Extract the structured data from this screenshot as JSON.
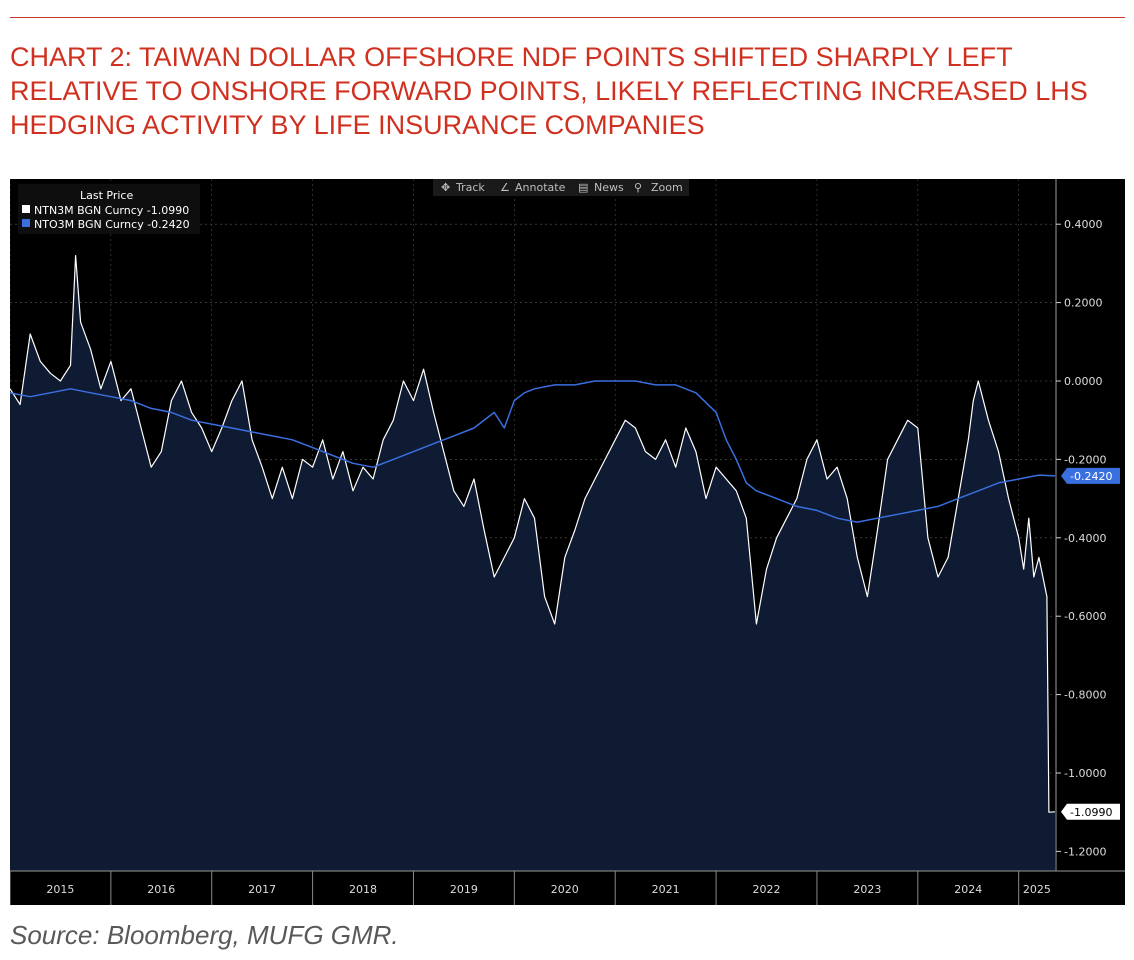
{
  "header": {
    "title": "CHART 2: TAIWAN DOLLAR OFFSHORE NDF POINTS SHIFTED SHARPLY LEFT RELATIVE TO ONSHORE FORWARD POINTS, LIKELY REFLECTING INCREASED LHS HEDGING ACTIVITY BY LIFE INSURANCE COMPANIES"
  },
  "footer": {
    "source": "Source: Bloomberg, MUFG GMR."
  },
  "toolbar": {
    "items": [
      {
        "label": "Track",
        "icon": "crosshair-icon"
      },
      {
        "label": "Annotate",
        "icon": "pencil-icon"
      },
      {
        "label": "News",
        "icon": "news-icon"
      },
      {
        "label": "Zoom",
        "icon": "magnifier-icon"
      }
    ]
  },
  "colors": {
    "series_white": "#ffffff",
    "series_blue": "#3a6fe0",
    "area_fill": "#0f1b33",
    "background": "#000000",
    "title": "#d0301f"
  },
  "chart_data": {
    "type": "line",
    "legend": {
      "header": "Last Price",
      "placement": "top-left",
      "entries": [
        {
          "label": "NTN3M BGN Curncy  -1.0990",
          "color": "#ffffff"
        },
        {
          "label": "NTO3M BGN Curncy  -0.2420",
          "color": "#3a6fe0"
        }
      ]
    },
    "x_start": 2015.0,
    "x_end": 2025.36,
    "ylim": [
      -1.25,
      0.5
    ],
    "y_ticks": [
      0.4,
      0.2,
      0.0,
      -0.2,
      -0.4,
      -0.6,
      -0.8,
      -1.0,
      -1.2
    ],
    "y_tick_labels": [
      "0.4000",
      "0.2000",
      "0.0000",
      "-0.2000",
      "-0.4000",
      "-0.6000",
      "-0.8000",
      "-1.0000",
      "-1.2000"
    ],
    "x_tick_labels": [
      "2015",
      "2016",
      "2017",
      "2018",
      "2019",
      "2020",
      "2021",
      "2022",
      "2023",
      "2024",
      "2025"
    ],
    "x_tick_values": [
      2015,
      2016,
      2017,
      2018,
      2019,
      2020,
      2021,
      2022,
      2023,
      2024,
      2025
    ],
    "last_value_labels": [
      {
        "series": "NTO3M BGN Curncy",
        "text": "-0.2420",
        "value": -0.242,
        "color": "#3a6fe0"
      },
      {
        "series": "NTN3M BGN Curncy",
        "text": "-1.0990",
        "value": -1.099,
        "color": "#ffffff"
      }
    ],
    "series": [
      {
        "name": "NTN3M BGN Curncy",
        "color": "#ffffff",
        "area": true,
        "points": [
          [
            2015.0,
            -0.02
          ],
          [
            2015.1,
            -0.06
          ],
          [
            2015.2,
            0.12
          ],
          [
            2015.3,
            0.05
          ],
          [
            2015.4,
            0.02
          ],
          [
            2015.5,
            0.0
          ],
          [
            2015.6,
            0.04
          ],
          [
            2015.65,
            0.32
          ],
          [
            2015.7,
            0.15
          ],
          [
            2015.8,
            0.08
          ],
          [
            2015.9,
            -0.02
          ],
          [
            2016.0,
            0.05
          ],
          [
            2016.1,
            -0.05
          ],
          [
            2016.2,
            -0.02
          ],
          [
            2016.3,
            -0.12
          ],
          [
            2016.4,
            -0.22
          ],
          [
            2016.5,
            -0.18
          ],
          [
            2016.6,
            -0.05
          ],
          [
            2016.7,
            0.0
          ],
          [
            2016.8,
            -0.08
          ],
          [
            2016.9,
            -0.12
          ],
          [
            2017.0,
            -0.18
          ],
          [
            2017.1,
            -0.12
          ],
          [
            2017.2,
            -0.05
          ],
          [
            2017.3,
            0.0
          ],
          [
            2017.4,
            -0.15
          ],
          [
            2017.5,
            -0.22
          ],
          [
            2017.6,
            -0.3
          ],
          [
            2017.7,
            -0.22
          ],
          [
            2017.8,
            -0.3
          ],
          [
            2017.9,
            -0.2
          ],
          [
            2018.0,
            -0.22
          ],
          [
            2018.1,
            -0.15
          ],
          [
            2018.2,
            -0.25
          ],
          [
            2018.3,
            -0.18
          ],
          [
            2018.4,
            -0.28
          ],
          [
            2018.5,
            -0.22
          ],
          [
            2018.6,
            -0.25
          ],
          [
            2018.7,
            -0.15
          ],
          [
            2018.8,
            -0.1
          ],
          [
            2018.9,
            0.0
          ],
          [
            2019.0,
            -0.05
          ],
          [
            2019.1,
            0.03
          ],
          [
            2019.2,
            -0.08
          ],
          [
            2019.3,
            -0.18
          ],
          [
            2019.4,
            -0.28
          ],
          [
            2019.5,
            -0.32
          ],
          [
            2019.6,
            -0.25
          ],
          [
            2019.7,
            -0.38
          ],
          [
            2019.8,
            -0.5
          ],
          [
            2019.9,
            -0.45
          ],
          [
            2020.0,
            -0.4
          ],
          [
            2020.1,
            -0.3
          ],
          [
            2020.2,
            -0.35
          ],
          [
            2020.3,
            -0.55
          ],
          [
            2020.4,
            -0.62
          ],
          [
            2020.5,
            -0.45
          ],
          [
            2020.6,
            -0.38
          ],
          [
            2020.7,
            -0.3
          ],
          [
            2020.8,
            -0.25
          ],
          [
            2020.9,
            -0.2
          ],
          [
            2021.0,
            -0.15
          ],
          [
            2021.1,
            -0.1
          ],
          [
            2021.2,
            -0.12
          ],
          [
            2021.3,
            -0.18
          ],
          [
            2021.4,
            -0.2
          ],
          [
            2021.5,
            -0.15
          ],
          [
            2021.6,
            -0.22
          ],
          [
            2021.7,
            -0.12
          ],
          [
            2021.8,
            -0.18
          ],
          [
            2021.9,
            -0.3
          ],
          [
            2022.0,
            -0.22
          ],
          [
            2022.1,
            -0.25
          ],
          [
            2022.2,
            -0.28
          ],
          [
            2022.3,
            -0.35
          ],
          [
            2022.4,
            -0.62
          ],
          [
            2022.5,
            -0.48
          ],
          [
            2022.6,
            -0.4
          ],
          [
            2022.7,
            -0.35
          ],
          [
            2022.8,
            -0.3
          ],
          [
            2022.9,
            -0.2
          ],
          [
            2023.0,
            -0.15
          ],
          [
            2023.1,
            -0.25
          ],
          [
            2023.2,
            -0.22
          ],
          [
            2023.3,
            -0.3
          ],
          [
            2023.4,
            -0.45
          ],
          [
            2023.5,
            -0.55
          ],
          [
            2023.6,
            -0.38
          ],
          [
            2023.7,
            -0.2
          ],
          [
            2023.8,
            -0.15
          ],
          [
            2023.9,
            -0.1
          ],
          [
            2024.0,
            -0.12
          ],
          [
            2024.1,
            -0.4
          ],
          [
            2024.2,
            -0.5
          ],
          [
            2024.3,
            -0.45
          ],
          [
            2024.4,
            -0.3
          ],
          [
            2024.5,
            -0.15
          ],
          [
            2024.55,
            -0.05
          ],
          [
            2024.6,
            0.0
          ],
          [
            2024.7,
            -0.1
          ],
          [
            2024.8,
            -0.18
          ],
          [
            2024.9,
            -0.3
          ],
          [
            2025.0,
            -0.4
          ],
          [
            2025.05,
            -0.48
          ],
          [
            2025.1,
            -0.35
          ],
          [
            2025.15,
            -0.5
          ],
          [
            2025.2,
            -0.45
          ],
          [
            2025.28,
            -0.55
          ],
          [
            2025.3,
            -1.1
          ],
          [
            2025.36,
            -1.099
          ]
        ]
      },
      {
        "name": "NTO3M BGN Curncy",
        "color": "#3a6fe0",
        "area": false,
        "points": [
          [
            2015.0,
            -0.03
          ],
          [
            2015.2,
            -0.04
          ],
          [
            2015.4,
            -0.03
          ],
          [
            2015.6,
            -0.02
          ],
          [
            2015.8,
            -0.03
          ],
          [
            2016.0,
            -0.04
          ],
          [
            2016.2,
            -0.05
          ],
          [
            2016.4,
            -0.07
          ],
          [
            2016.6,
            -0.08
          ],
          [
            2016.8,
            -0.1
          ],
          [
            2017.0,
            -0.11
          ],
          [
            2017.2,
            -0.12
          ],
          [
            2017.4,
            -0.13
          ],
          [
            2017.6,
            -0.14
          ],
          [
            2017.8,
            -0.15
          ],
          [
            2018.0,
            -0.17
          ],
          [
            2018.2,
            -0.19
          ],
          [
            2018.4,
            -0.21
          ],
          [
            2018.6,
            -0.22
          ],
          [
            2018.8,
            -0.2
          ],
          [
            2019.0,
            -0.18
          ],
          [
            2019.2,
            -0.16
          ],
          [
            2019.4,
            -0.14
          ],
          [
            2019.6,
            -0.12
          ],
          [
            2019.8,
            -0.08
          ],
          [
            2019.9,
            -0.12
          ],
          [
            2020.0,
            -0.05
          ],
          [
            2020.1,
            -0.03
          ],
          [
            2020.2,
            -0.02
          ],
          [
            2020.4,
            -0.01
          ],
          [
            2020.6,
            -0.01
          ],
          [
            2020.8,
            0.0
          ],
          [
            2021.0,
            0.0
          ],
          [
            2021.2,
            0.0
          ],
          [
            2021.4,
            -0.01
          ],
          [
            2021.6,
            -0.01
          ],
          [
            2021.8,
            -0.03
          ],
          [
            2022.0,
            -0.08
          ],
          [
            2022.1,
            -0.15
          ],
          [
            2022.2,
            -0.2
          ],
          [
            2022.3,
            -0.26
          ],
          [
            2022.4,
            -0.28
          ],
          [
            2022.6,
            -0.3
          ],
          [
            2022.8,
            -0.32
          ],
          [
            2023.0,
            -0.33
          ],
          [
            2023.2,
            -0.35
          ],
          [
            2023.4,
            -0.36
          ],
          [
            2023.6,
            -0.35
          ],
          [
            2023.8,
            -0.34
          ],
          [
            2024.0,
            -0.33
          ],
          [
            2024.2,
            -0.32
          ],
          [
            2024.4,
            -0.3
          ],
          [
            2024.6,
            -0.28
          ],
          [
            2024.8,
            -0.26
          ],
          [
            2025.0,
            -0.25
          ],
          [
            2025.2,
            -0.24
          ],
          [
            2025.36,
            -0.242
          ]
        ]
      }
    ]
  }
}
